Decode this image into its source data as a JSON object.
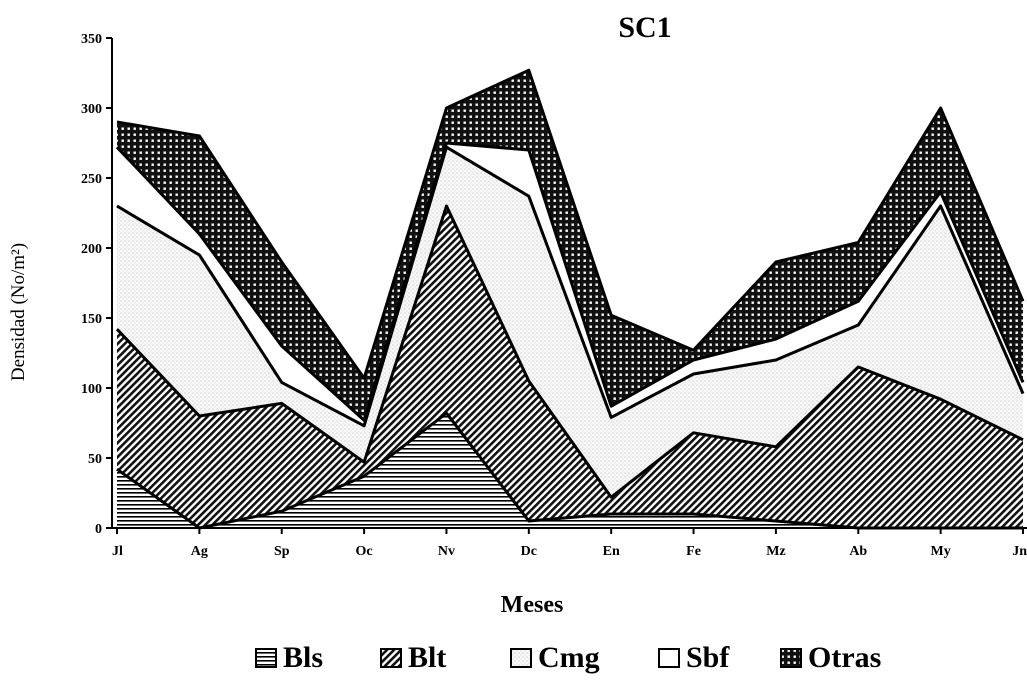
{
  "chart_data": {
    "type": "area",
    "stacked": true,
    "title": "SC1",
    "xlabel": "Meses",
    "ylabel": "Densidad (No/m²)",
    "ylim": [
      0,
      350
    ],
    "yticks": [
      0,
      50,
      100,
      150,
      200,
      250,
      300,
      350
    ],
    "categories": [
      "Jl",
      "Ag",
      "Sp",
      "Oc",
      "Nv",
      "Dc",
      "En",
      "Fe",
      "Mz",
      "Ab",
      "My",
      "Jn"
    ],
    "series": [
      {
        "name": "Bls",
        "values": [
          42,
          0,
          12,
          37,
          82,
          5,
          10,
          10,
          5,
          0,
          0,
          0
        ]
      },
      {
        "name": "Blt",
        "values": [
          100,
          80,
          77,
          10,
          148,
          100,
          12,
          58,
          53,
          115,
          92,
          63
        ]
      },
      {
        "name": "Cmg",
        "values": [
          88,
          115,
          15,
          26,
          42,
          132,
          57,
          42,
          62,
          30,
          138,
          33
        ]
      },
      {
        "name": "Sbf",
        "values": [
          42,
          15,
          26,
          4,
          3,
          33,
          8,
          10,
          15,
          17,
          10,
          8
        ]
      },
      {
        "name": "Otras",
        "values": [
          18,
          70,
          60,
          30,
          25,
          57,
          65,
          7,
          55,
          42,
          60,
          58
        ]
      }
    ],
    "legend_position": "bottom"
  },
  "legend": {
    "items": [
      {
        "label": "Bls",
        "pattern": "hlines"
      },
      {
        "label": "Blt",
        "pattern": "diag"
      },
      {
        "label": "Cmg",
        "pattern": "dots"
      },
      {
        "label": "Sbf",
        "pattern": "blank"
      },
      {
        "label": "Otras",
        "pattern": "grid"
      }
    ]
  }
}
